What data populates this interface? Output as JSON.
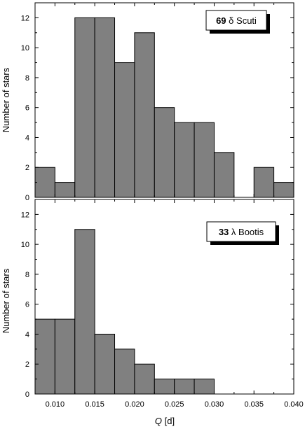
{
  "chart_data": [
    {
      "type": "bar",
      "legend_count": "69",
      "legend_name": "δ Scuti",
      "ylabel": "Number of stars",
      "xlim": [
        0.0075,
        0.04
      ],
      "ylim": [
        0,
        13
      ],
      "yticks": [
        0,
        2,
        4,
        6,
        8,
        10,
        12
      ],
      "bin_width": 0.0025,
      "bins_start": [
        0.0075,
        0.01,
        0.0125,
        0.015,
        0.0175,
        0.02,
        0.0225,
        0.025,
        0.0275,
        0.03,
        0.0325,
        0.035,
        0.0375
      ],
      "values": [
        2,
        1,
        12,
        12,
        9,
        11,
        6,
        5,
        5,
        3,
        0,
        2,
        1
      ],
      "legend_position": "top-right",
      "bar_color": "#808080"
    },
    {
      "type": "bar",
      "legend_count": "33",
      "legend_name": "λ Bootis",
      "ylabel": "Number of stars",
      "xlabel_italic": "Q",
      "xlabel_unit": " [d]",
      "xlim": [
        0.0075,
        0.04
      ],
      "ylim": [
        0,
        13
      ],
      "yticks": [
        0,
        2,
        4,
        6,
        8,
        10,
        12
      ],
      "xticks": [
        "0.010",
        "0.015",
        "0.020",
        "0.025",
        "0.030",
        "0.035",
        "0.040"
      ],
      "bin_width": 0.0025,
      "bins_start": [
        0.0075,
        0.01,
        0.0125,
        0.015,
        0.0175,
        0.02,
        0.0225,
        0.025,
        0.0275,
        0.03,
        0.0325,
        0.035,
        0.0375
      ],
      "values": [
        5,
        5,
        11,
        4,
        3,
        2,
        1,
        1,
        1,
        0,
        0,
        0,
        0
      ],
      "legend_position": "top-right",
      "bar_color": "#808080"
    }
  ]
}
